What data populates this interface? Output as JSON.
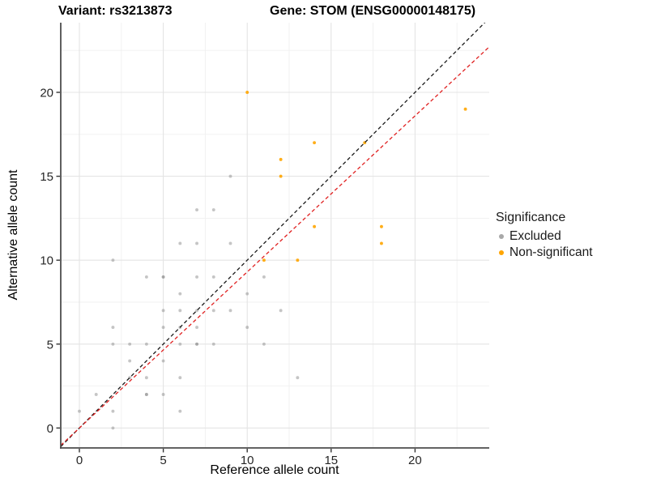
{
  "title": {
    "variant": "Variant: rs3213873",
    "gene": "Gene: STOM (ENSG00000148175)"
  },
  "axes": {
    "x": {
      "label": "Reference allele count",
      "ticks": [
        0,
        5,
        10,
        15,
        20
      ],
      "minor_ticks": [
        2.5,
        7.5,
        12.5,
        17.5,
        22.5
      ],
      "range": [
        -1.11,
        24.42
      ]
    },
    "y": {
      "label": "Alternative allele count",
      "ticks": [
        0,
        5,
        10,
        15,
        20
      ],
      "minor_ticks": [
        2.5,
        7.5,
        12.5,
        17.5,
        22.5
      ],
      "range": [
        -1.19,
        24.15
      ]
    }
  },
  "legend": {
    "title": "Significance",
    "items": [
      {
        "label": "Excluded",
        "color": "#a8a8a8"
      },
      {
        "label": "Non-significant",
        "color": "#ffa500"
      }
    ]
  },
  "chart_data": {
    "type": "scatter",
    "title": "Variant: rs3213873  /  Gene: STOM (ENSG00000148175)",
    "xlabel": "Reference allele count",
    "ylabel": "Alternative allele count",
    "xlim": [
      -1.11,
      24.42
    ],
    "ylim": [
      -1.19,
      24.15
    ],
    "grid": true,
    "legend_position": "right",
    "series": [
      {
        "name": "Excluded",
        "color": "#8c8c8c",
        "opacity": 0.5,
        "points": [
          [
            0,
            1
          ],
          [
            1,
            2
          ],
          [
            2,
            0
          ],
          [
            2,
            1
          ],
          [
            2,
            5
          ],
          [
            2,
            6
          ],
          [
            2,
            10
          ],
          [
            3,
            3
          ],
          [
            3,
            4
          ],
          [
            3,
            5
          ],
          [
            4,
            2
          ],
          [
            4,
            2
          ],
          [
            4,
            3
          ],
          [
            4,
            5
          ],
          [
            4,
            9
          ],
          [
            5,
            2
          ],
          [
            5,
            4
          ],
          [
            5,
            6
          ],
          [
            5,
            7
          ],
          [
            5,
            9
          ],
          [
            5,
            9
          ],
          [
            6,
            1
          ],
          [
            6,
            3
          ],
          [
            6,
            5
          ],
          [
            6,
            6
          ],
          [
            6,
            7
          ],
          [
            6,
            8
          ],
          [
            6,
            11
          ],
          [
            7,
            5
          ],
          [
            7,
            5
          ],
          [
            7,
            6
          ],
          [
            7,
            7
          ],
          [
            7,
            9
          ],
          [
            7,
            11
          ],
          [
            7,
            13
          ],
          [
            8,
            5
          ],
          [
            8,
            7
          ],
          [
            8,
            9
          ],
          [
            8,
            13
          ],
          [
            9,
            7
          ],
          [
            9,
            11
          ],
          [
            9,
            15
          ],
          [
            10,
            6
          ],
          [
            10,
            8
          ],
          [
            11,
            5
          ],
          [
            11,
            9
          ],
          [
            12,
            7
          ],
          [
            13,
            3
          ]
        ]
      },
      {
        "name": "Non-significant",
        "color": "#ffa500",
        "opacity": 0.9,
        "points": [
          [
            10,
            20
          ],
          [
            11,
            10
          ],
          [
            12,
            15
          ],
          [
            12,
            16
          ],
          [
            13,
            10
          ],
          [
            14,
            12
          ],
          [
            14,
            17
          ],
          [
            17,
            17
          ],
          [
            18,
            11
          ],
          [
            18,
            12
          ],
          [
            23,
            19
          ]
        ]
      }
    ],
    "lines": [
      {
        "name": "identity-line",
        "slope": 1,
        "intercept": 0,
        "color": "#1a1a1a",
        "style": "dashed"
      },
      {
        "name": "expected-ratio-line",
        "slope": 0.93,
        "intercept": 0,
        "color": "#e02020",
        "style": "dashed"
      }
    ]
  }
}
